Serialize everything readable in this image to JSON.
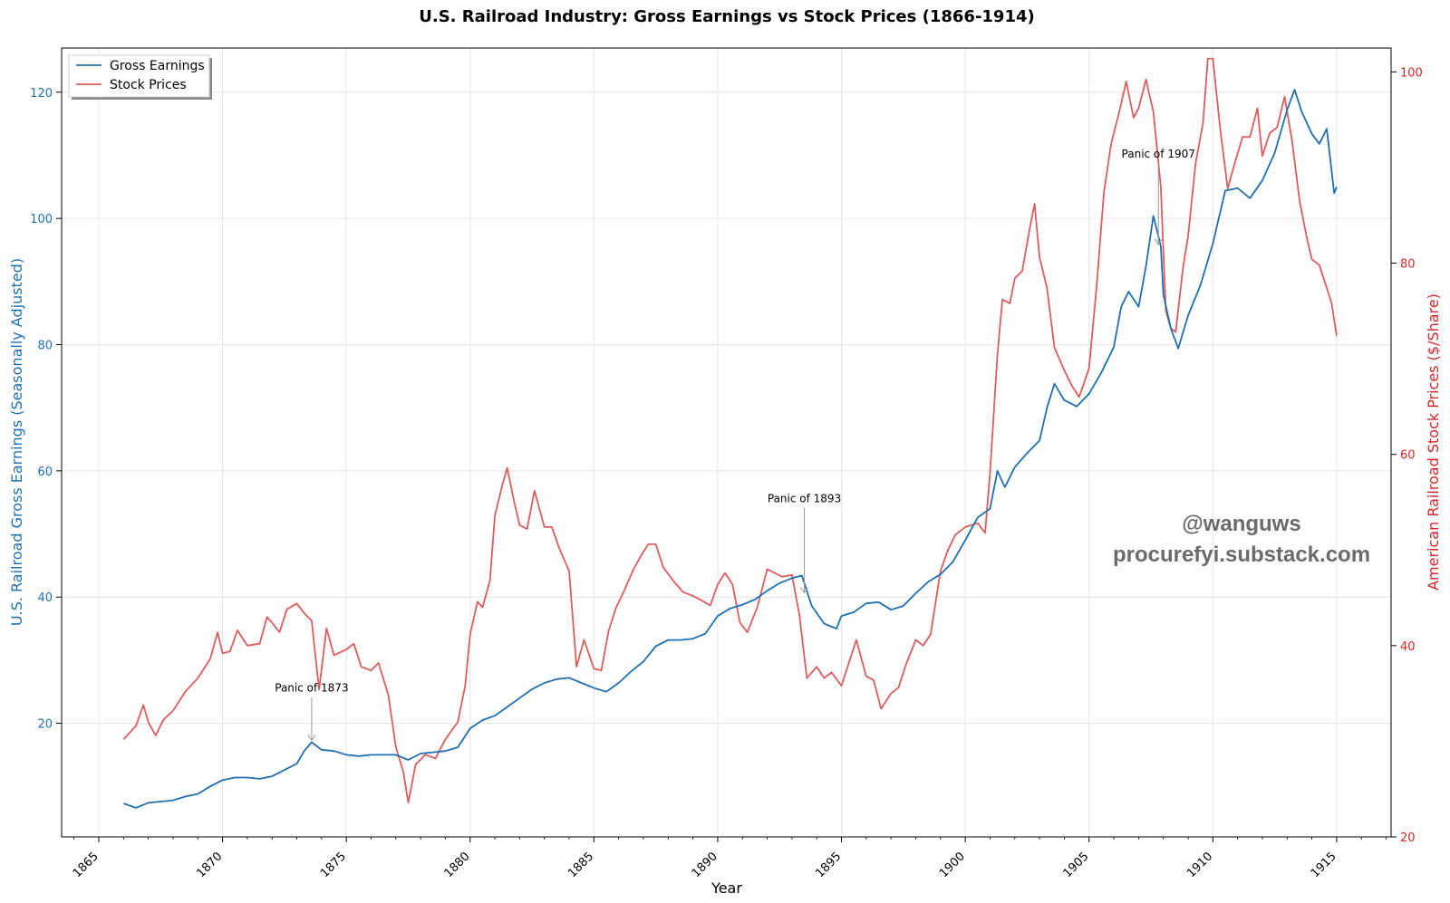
{
  "chart_data": {
    "type": "line",
    "title": "U.S. Railroad Industry: Gross Earnings vs Stock Prices (1866-1914)",
    "xlabel": "Year",
    "ylabel_left": "U.S. Railroad Gross Earnings (Seasonally Adjusted)",
    "ylabel_right": "American Railroad Stock Prices ($/Share)",
    "xlim": [
      1863.5,
      1917.2
    ],
    "ylim_left": [
      2,
      127
    ],
    "ylim_right": [
      20,
      102.5
    ],
    "x_ticks": [
      1865,
      1870,
      1875,
      1880,
      1885,
      1890,
      1895,
      1900,
      1905,
      1910,
      1915
    ],
    "left_ticks": [
      20,
      40,
      60,
      80,
      100,
      120
    ],
    "right_ticks": [
      20,
      40,
      60,
      80,
      100
    ],
    "grid": true,
    "legend_position": "top-left",
    "colors": {
      "earnings": "#1f6fb2",
      "stocks": "#e05c5c",
      "left_axis": "#1f6fb2",
      "right_axis": "#d62728",
      "grid": "#e6e6e6",
      "annotation_arrow": "#999999"
    },
    "series": [
      {
        "name": "Gross Earnings",
        "axis": "left",
        "points": [
          [
            1866.0,
            7.3
          ],
          [
            1866.5,
            6.6
          ],
          [
            1867.0,
            7.4
          ],
          [
            1867.5,
            7.6
          ],
          [
            1868.0,
            7.8
          ],
          [
            1868.5,
            8.4
          ],
          [
            1869.0,
            8.8
          ],
          [
            1869.5,
            10.0
          ],
          [
            1870.0,
            11.0
          ],
          [
            1870.5,
            11.4
          ],
          [
            1871.0,
            11.4
          ],
          [
            1871.5,
            11.2
          ],
          [
            1872.0,
            11.6
          ],
          [
            1872.5,
            12.6
          ],
          [
            1873.0,
            13.6
          ],
          [
            1873.3,
            15.6
          ],
          [
            1873.6,
            17.0
          ],
          [
            1874.0,
            15.8
          ],
          [
            1874.5,
            15.6
          ],
          [
            1875.0,
            15.0
          ],
          [
            1875.5,
            14.8
          ],
          [
            1876.0,
            15.0
          ],
          [
            1876.5,
            15.0
          ],
          [
            1877.0,
            15.0
          ],
          [
            1877.5,
            14.2
          ],
          [
            1878.0,
            15.2
          ],
          [
            1878.5,
            15.4
          ],
          [
            1879.0,
            15.6
          ],
          [
            1879.5,
            16.2
          ],
          [
            1880.0,
            19.2
          ],
          [
            1880.5,
            20.5
          ],
          [
            1881.0,
            21.2
          ],
          [
            1881.5,
            22.6
          ],
          [
            1882.0,
            24.0
          ],
          [
            1882.5,
            25.4
          ],
          [
            1883.0,
            26.4
          ],
          [
            1883.5,
            27.0
          ],
          [
            1884.0,
            27.2
          ],
          [
            1884.5,
            26.4
          ],
          [
            1885.0,
            25.6
          ],
          [
            1885.5,
            25.0
          ],
          [
            1886.0,
            26.4
          ],
          [
            1886.5,
            28.2
          ],
          [
            1887.0,
            29.8
          ],
          [
            1887.5,
            32.2
          ],
          [
            1888.0,
            33.2
          ],
          [
            1888.5,
            33.2
          ],
          [
            1889.0,
            33.4
          ],
          [
            1889.5,
            34.2
          ],
          [
            1890.0,
            37.0
          ],
          [
            1890.5,
            38.2
          ],
          [
            1891.0,
            38.8
          ],
          [
            1891.5,
            39.6
          ],
          [
            1892.0,
            41.0
          ],
          [
            1892.5,
            42.2
          ],
          [
            1893.0,
            43.0
          ],
          [
            1893.4,
            43.4
          ],
          [
            1893.8,
            38.6
          ],
          [
            1894.3,
            35.8
          ],
          [
            1894.8,
            35.0
          ],
          [
            1895.0,
            37.0
          ],
          [
            1895.5,
            37.6
          ],
          [
            1896.0,
            39.0
          ],
          [
            1896.5,
            39.2
          ],
          [
            1897.0,
            38.0
          ],
          [
            1897.5,
            38.6
          ],
          [
            1898.0,
            40.6
          ],
          [
            1898.5,
            42.4
          ],
          [
            1899.0,
            43.6
          ],
          [
            1899.5,
            45.6
          ],
          [
            1900.0,
            49.0
          ],
          [
            1900.5,
            52.6
          ],
          [
            1901.0,
            54.0
          ],
          [
            1901.3,
            60.0
          ],
          [
            1901.6,
            57.4
          ],
          [
            1902.0,
            60.6
          ],
          [
            1902.5,
            62.8
          ],
          [
            1903.0,
            64.8
          ],
          [
            1903.3,
            70.0
          ],
          [
            1903.6,
            73.8
          ],
          [
            1904.0,
            71.2
          ],
          [
            1904.5,
            70.2
          ],
          [
            1905.0,
            72.2
          ],
          [
            1905.5,
            75.6
          ],
          [
            1906.0,
            79.6
          ],
          [
            1906.3,
            86.0
          ],
          [
            1906.6,
            88.4
          ],
          [
            1907.0,
            86.0
          ],
          [
            1907.3,
            92.4
          ],
          [
            1907.6,
            100.4
          ],
          [
            1907.9,
            95.6
          ],
          [
            1908.0,
            88.0
          ],
          [
            1908.3,
            82.6
          ],
          [
            1908.6,
            79.4
          ],
          [
            1909.0,
            84.6
          ],
          [
            1909.5,
            89.4
          ],
          [
            1910.0,
            96.0
          ],
          [
            1910.5,
            104.4
          ],
          [
            1911.0,
            104.8
          ],
          [
            1911.5,
            103.2
          ],
          [
            1912.0,
            106.0
          ],
          [
            1912.5,
            110.4
          ],
          [
            1913.0,
            117.2
          ],
          [
            1913.3,
            120.4
          ],
          [
            1913.6,
            116.8
          ],
          [
            1914.0,
            113.4
          ],
          [
            1914.3,
            111.8
          ],
          [
            1914.6,
            114.2
          ],
          [
            1914.9,
            104.0
          ],
          [
            1915.0,
            105.0
          ]
        ]
      },
      {
        "name": "Stock Prices",
        "axis": "right",
        "points": [
          [
            1866.0,
            30.2
          ],
          [
            1866.5,
            31.6
          ],
          [
            1866.8,
            33.8
          ],
          [
            1867.0,
            32.0
          ],
          [
            1867.3,
            30.6
          ],
          [
            1867.6,
            32.2
          ],
          [
            1868.0,
            33.2
          ],
          [
            1868.5,
            35.2
          ],
          [
            1869.0,
            36.6
          ],
          [
            1869.5,
            38.6
          ],
          [
            1869.8,
            41.4
          ],
          [
            1870.0,
            39.2
          ],
          [
            1870.3,
            39.4
          ],
          [
            1870.6,
            41.6
          ],
          [
            1871.0,
            40.0
          ],
          [
            1871.5,
            40.2
          ],
          [
            1871.8,
            43.0
          ],
          [
            1872.0,
            42.4
          ],
          [
            1872.3,
            41.4
          ],
          [
            1872.6,
            43.8
          ],
          [
            1873.0,
            44.4
          ],
          [
            1873.3,
            43.4
          ],
          [
            1873.6,
            42.6
          ],
          [
            1873.9,
            35.4
          ],
          [
            1874.2,
            41.8
          ],
          [
            1874.5,
            39.0
          ],
          [
            1875.0,
            39.6
          ],
          [
            1875.3,
            40.2
          ],
          [
            1875.6,
            37.8
          ],
          [
            1876.0,
            37.4
          ],
          [
            1876.3,
            38.2
          ],
          [
            1876.7,
            34.8
          ],
          [
            1877.0,
            29.4
          ],
          [
            1877.3,
            26.8
          ],
          [
            1877.5,
            23.6
          ],
          [
            1877.8,
            27.6
          ],
          [
            1878.2,
            28.6
          ],
          [
            1878.6,
            28.2
          ],
          [
            1879.0,
            30.2
          ],
          [
            1879.5,
            32.0
          ],
          [
            1879.8,
            35.8
          ],
          [
            1880.0,
            41.2
          ],
          [
            1880.3,
            44.6
          ],
          [
            1880.5,
            44.0
          ],
          [
            1880.8,
            46.8
          ],
          [
            1881.0,
            53.6
          ],
          [
            1881.3,
            56.8
          ],
          [
            1881.5,
            58.6
          ],
          [
            1881.8,
            54.8
          ],
          [
            1882.0,
            52.6
          ],
          [
            1882.3,
            52.2
          ],
          [
            1882.6,
            56.2
          ],
          [
            1883.0,
            52.4
          ],
          [
            1883.3,
            52.4
          ],
          [
            1883.6,
            50.2
          ],
          [
            1884.0,
            47.8
          ],
          [
            1884.3,
            37.8
          ],
          [
            1884.6,
            40.6
          ],
          [
            1885.0,
            37.6
          ],
          [
            1885.3,
            37.4
          ],
          [
            1885.6,
            41.6
          ],
          [
            1885.9,
            44.0
          ],
          [
            1886.2,
            45.6
          ],
          [
            1886.6,
            48.0
          ],
          [
            1886.9,
            49.4
          ],
          [
            1887.2,
            50.6
          ],
          [
            1887.5,
            50.6
          ],
          [
            1887.8,
            48.2
          ],
          [
            1888.2,
            46.8
          ],
          [
            1888.6,
            45.6
          ],
          [
            1889.0,
            45.2
          ],
          [
            1889.3,
            44.8
          ],
          [
            1889.7,
            44.2
          ],
          [
            1890.0,
            46.4
          ],
          [
            1890.3,
            47.6
          ],
          [
            1890.6,
            46.4
          ],
          [
            1890.9,
            42.4
          ],
          [
            1891.2,
            41.4
          ],
          [
            1891.6,
            44.0
          ],
          [
            1892.0,
            48.0
          ],
          [
            1892.3,
            47.6
          ],
          [
            1892.6,
            47.2
          ],
          [
            1893.0,
            47.4
          ],
          [
            1893.3,
            43.2
          ],
          [
            1893.6,
            36.6
          ],
          [
            1894.0,
            37.8
          ],
          [
            1894.3,
            36.6
          ],
          [
            1894.6,
            37.2
          ],
          [
            1895.0,
            35.8
          ],
          [
            1895.3,
            38.2
          ],
          [
            1895.6,
            40.6
          ],
          [
            1896.0,
            36.8
          ],
          [
            1896.3,
            36.4
          ],
          [
            1896.6,
            33.4
          ],
          [
            1897.0,
            35.0
          ],
          [
            1897.3,
            35.6
          ],
          [
            1897.6,
            38.0
          ],
          [
            1898.0,
            40.6
          ],
          [
            1898.3,
            40.0
          ],
          [
            1898.6,
            41.2
          ],
          [
            1899.0,
            47.8
          ],
          [
            1899.3,
            50.0
          ],
          [
            1899.6,
            51.6
          ],
          [
            1900.0,
            52.4
          ],
          [
            1900.5,
            52.8
          ],
          [
            1900.8,
            51.8
          ],
          [
            1901.0,
            58.0
          ],
          [
            1901.3,
            70.4
          ],
          [
            1901.5,
            76.2
          ],
          [
            1901.8,
            75.8
          ],
          [
            1902.0,
            78.4
          ],
          [
            1902.3,
            79.2
          ],
          [
            1902.6,
            83.6
          ],
          [
            1902.8,
            86.2
          ],
          [
            1903.0,
            80.6
          ],
          [
            1903.3,
            77.4
          ],
          [
            1903.6,
            71.2
          ],
          [
            1904.0,
            68.8
          ],
          [
            1904.3,
            67.2
          ],
          [
            1904.6,
            66.0
          ],
          [
            1905.0,
            69.0
          ],
          [
            1905.3,
            77.4
          ],
          [
            1905.6,
            87.4
          ],
          [
            1905.9,
            92.6
          ],
          [
            1906.2,
            95.6
          ],
          [
            1906.5,
            99.0
          ],
          [
            1906.8,
            95.2
          ],
          [
            1907.0,
            96.2
          ],
          [
            1907.3,
            99.2
          ],
          [
            1907.6,
            95.8
          ],
          [
            1907.9,
            88.0
          ],
          [
            1908.1,
            75.0
          ],
          [
            1908.3,
            73.2
          ],
          [
            1908.5,
            72.8
          ],
          [
            1908.8,
            79.6
          ],
          [
            1909.0,
            82.8
          ],
          [
            1909.3,
            90.4
          ],
          [
            1909.6,
            94.6
          ],
          [
            1909.8,
            101.4
          ],
          [
            1910.0,
            101.4
          ],
          [
            1910.3,
            94.0
          ],
          [
            1910.6,
            87.8
          ],
          [
            1910.9,
            90.6
          ],
          [
            1911.2,
            93.2
          ],
          [
            1911.5,
            93.2
          ],
          [
            1911.8,
            96.2
          ],
          [
            1912.0,
            91.2
          ],
          [
            1912.3,
            93.6
          ],
          [
            1912.6,
            94.2
          ],
          [
            1912.9,
            97.4
          ],
          [
            1913.2,
            92.8
          ],
          [
            1913.5,
            86.6
          ],
          [
            1913.8,
            82.6
          ],
          [
            1914.0,
            80.4
          ],
          [
            1914.3,
            79.8
          ],
          [
            1914.6,
            77.4
          ],
          [
            1914.8,
            75.8
          ],
          [
            1915.0,
            72.4
          ]
        ]
      }
    ],
    "annotations": [
      {
        "text": "Panic of 1873",
        "x": 1873.6,
        "y_left": 17.0,
        "text_x": 1873.6,
        "text_y_left": 25.0
      },
      {
        "text": "Panic of 1893",
        "x": 1893.5,
        "y_left": 40.4,
        "text_x": 1893.5,
        "text_y_left": 55.0
      },
      {
        "text": "Panic of 1907",
        "x": 1907.8,
        "y_left": 95.6,
        "text_x": 1907.8,
        "text_y_left": 109.6
      }
    ],
    "watermark": [
      "@wanguws",
      "procurefyi.substack.com"
    ]
  }
}
